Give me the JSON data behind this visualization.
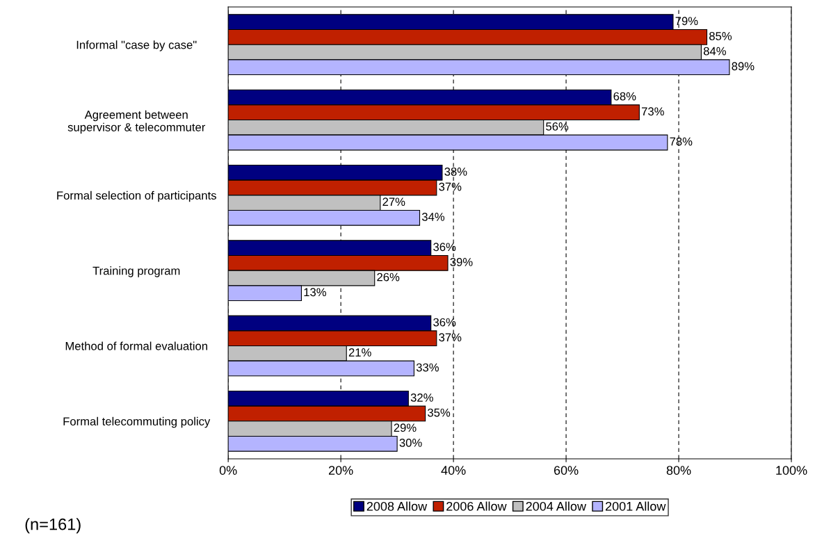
{
  "chart_data": {
    "type": "bar",
    "orientation": "horizontal",
    "categories": [
      "Informal \"case by case\"",
      "Agreement between\nsupervisor & telecommuter",
      "Formal selection of participants",
      "Training program",
      "Method of formal evaluation",
      "Formal telecommuting policy"
    ],
    "series": [
      {
        "name": "2008 Allow",
        "color": "#000080",
        "values": [
          79,
          68,
          38,
          36,
          36,
          32
        ],
        "value_labels": [
          "79%",
          "68%",
          "38%",
          "36%",
          "36%",
          "32%"
        ]
      },
      {
        "name": "2006 Allow",
        "color": "#c02000",
        "values": [
          85,
          73,
          37,
          39,
          37,
          35
        ],
        "value_labels": [
          "85%",
          "73%",
          "37%",
          "39%",
          "37%",
          "35%"
        ]
      },
      {
        "name": "2004 Allow",
        "color": "#c0c0c0",
        "values": [
          84,
          56,
          27,
          26,
          21,
          29
        ],
        "value_labels": [
          "84%",
          "56%",
          "27%",
          "26%",
          "21%",
          "29%"
        ]
      },
      {
        "name": "2001 Allow",
        "color": "#b4b4ff",
        "values": [
          89,
          78,
          34,
          13,
          33,
          30
        ],
        "value_labels": [
          "89%",
          "78%",
          "34%",
          "13%",
          "33%",
          "30%"
        ]
      }
    ],
    "xlim": [
      0,
      100
    ],
    "xticks": [
      {
        "value": 0,
        "label": "0%"
      },
      {
        "value": 20,
        "label": "20%"
      },
      {
        "value": 40,
        "label": "40%"
      },
      {
        "value": 60,
        "label": "60%"
      },
      {
        "value": 80,
        "label": "80%"
      },
      {
        "value": 100,
        "label": "100%"
      }
    ],
    "grid": "x",
    "legend": "bottom",
    "annotations": [
      "(n=161)"
    ]
  }
}
